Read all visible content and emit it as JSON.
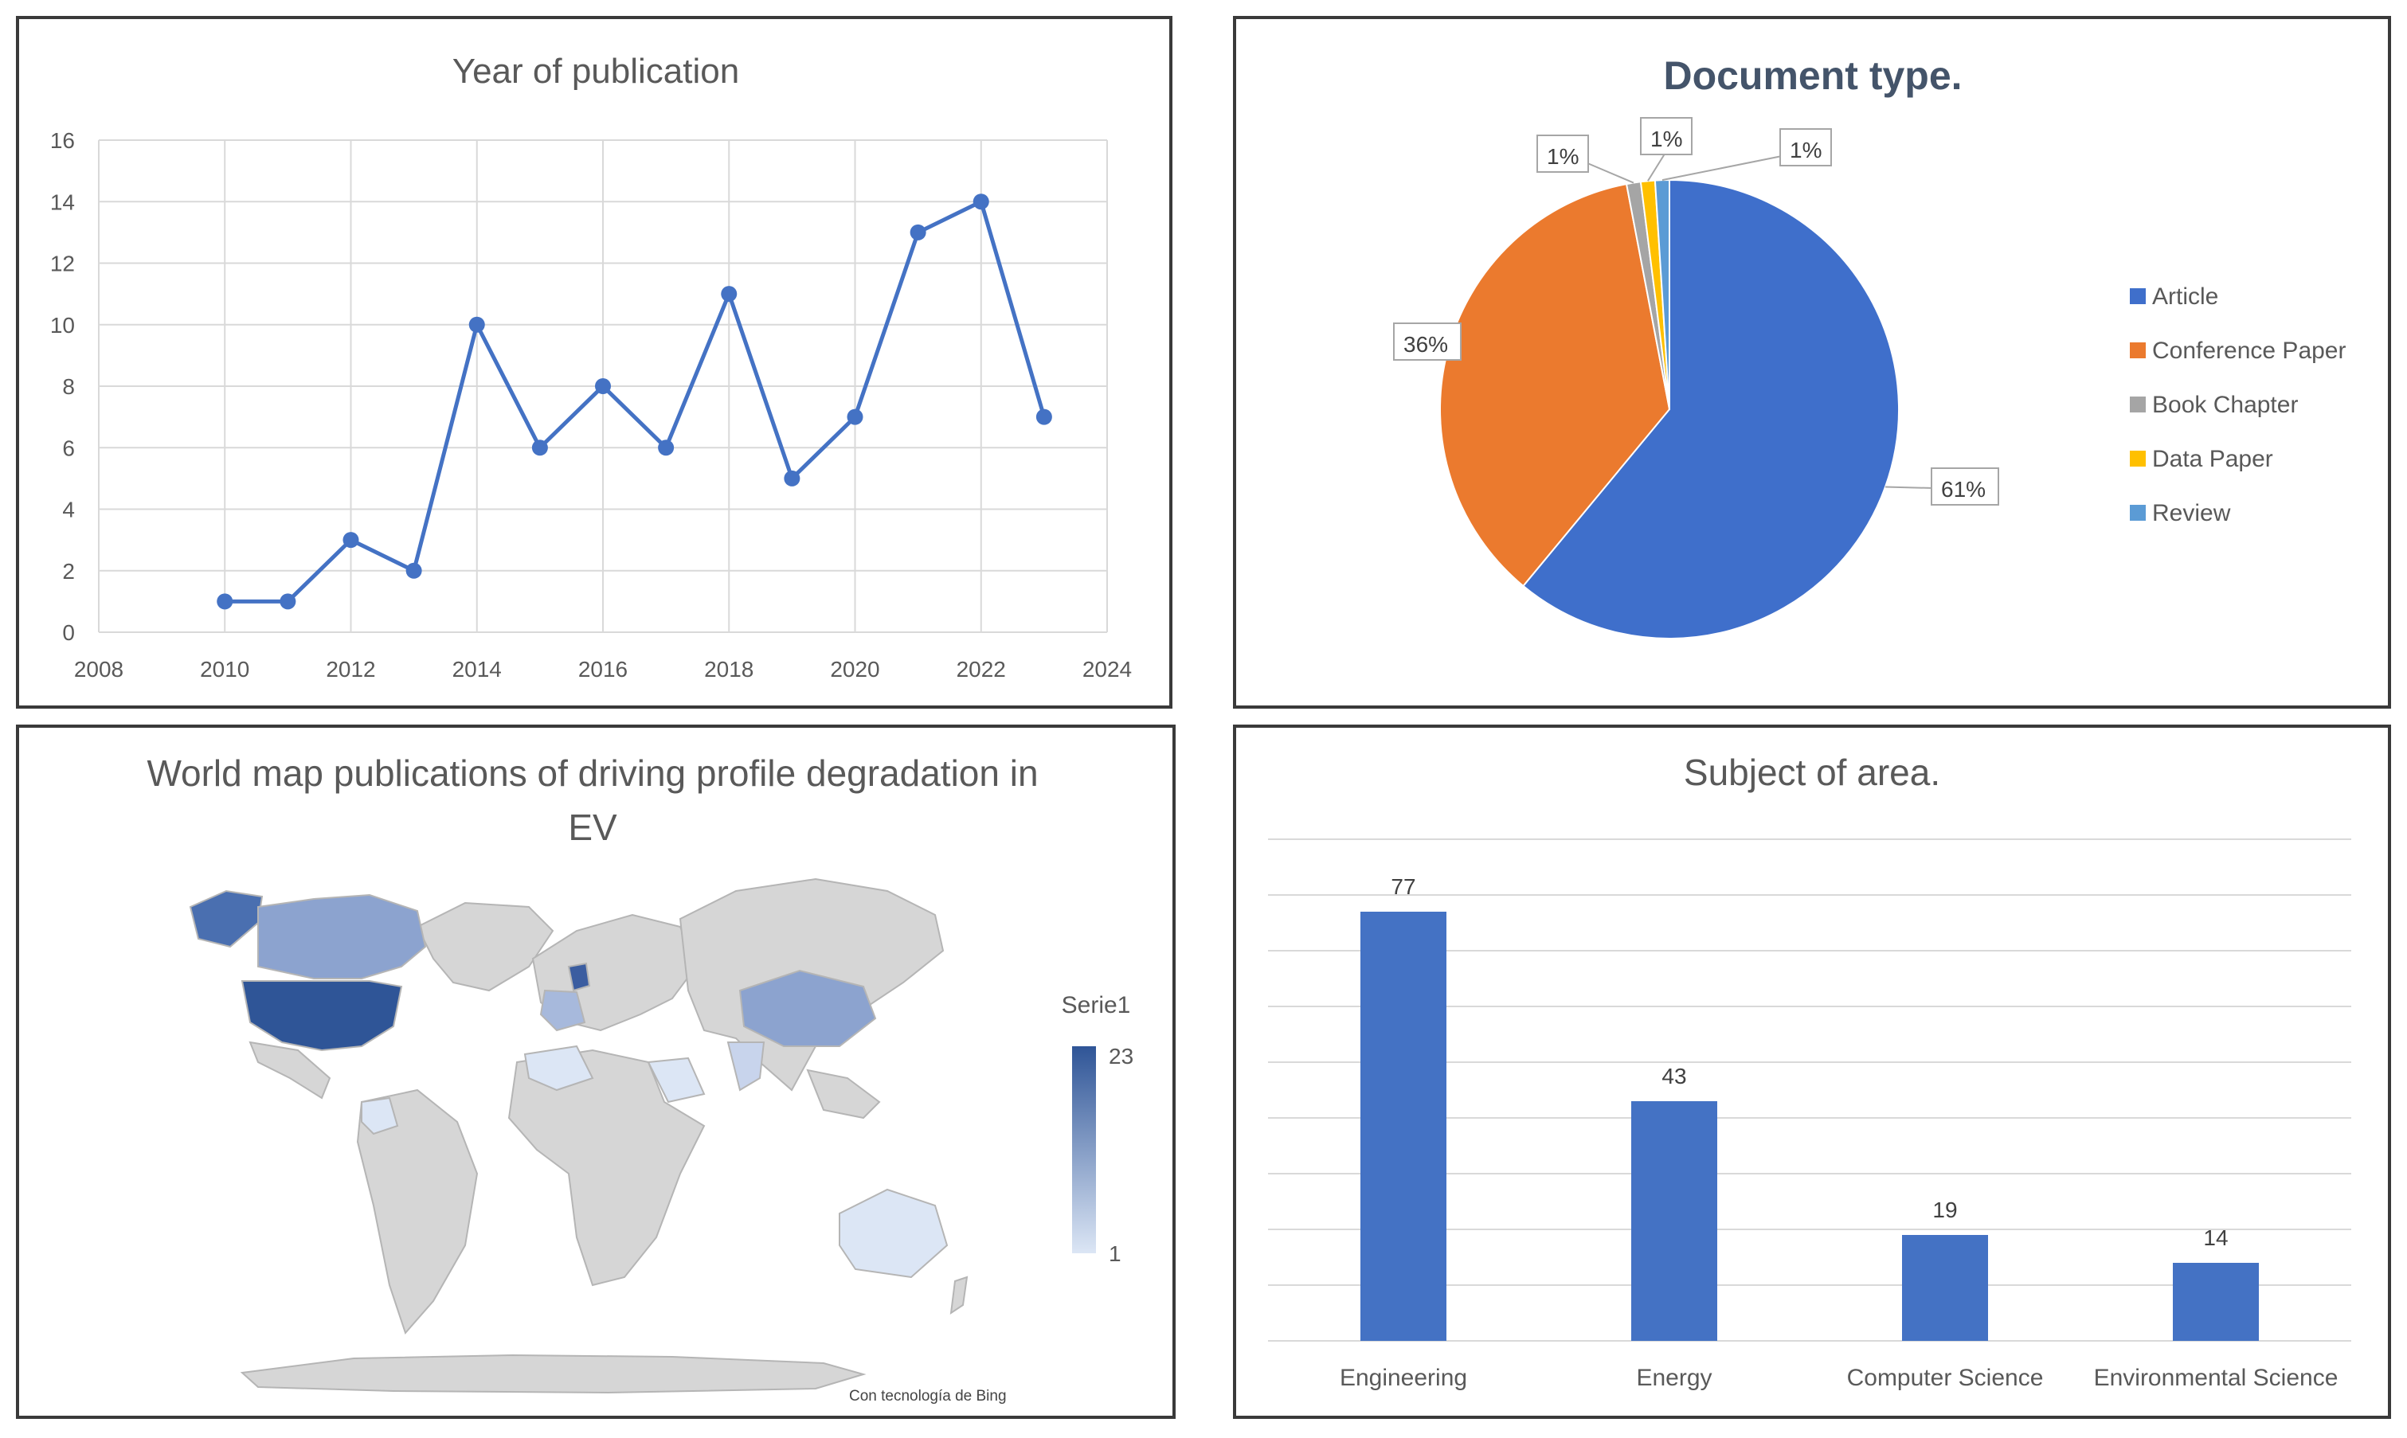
{
  "colors": {
    "line": "#4472C4",
    "article": "#3F6FCB",
    "conference": "#EB7A2E",
    "book_chapter": "#A5A5A5",
    "data_paper": "#FFC000",
    "review": "#5B9BD5",
    "bar": "#4472C4",
    "grid": "#D9D9D9",
    "map_land": "#D6D6D6",
    "map_low": "#DCE6F5",
    "map_high": "#2F5597"
  },
  "chart_data": [
    {
      "type": "line",
      "title": "Year of publication",
      "x": [
        2010,
        2011,
        2012,
        2013,
        2014,
        2015,
        2016,
        2017,
        2018,
        2019,
        2020,
        2021,
        2022,
        2023
      ],
      "y": [
        1,
        1,
        3,
        2,
        10,
        6,
        8,
        6,
        11,
        5,
        7,
        13,
        14,
        7
      ],
      "xlim": [
        2008,
        2024
      ],
      "ylim": [
        0,
        16
      ],
      "x_ticks": [
        "2008",
        "2010",
        "2012",
        "2014",
        "2016",
        "2018",
        "2020",
        "2022",
        "2024"
      ],
      "y_ticks": [
        "0",
        "2",
        "4",
        "6",
        "8",
        "10",
        "12",
        "14",
        "16"
      ],
      "grid": true
    },
    {
      "type": "pie",
      "title": "Document type.",
      "slices": [
        {
          "name": "Article",
          "value": 61,
          "label": "61%",
          "color": "#3F6FCB"
        },
        {
          "name": "Conference Paper",
          "value": 36,
          "label": "36%",
          "color": "#EB7A2E"
        },
        {
          "name": "Book Chapter",
          "value": 1,
          "label": "1%",
          "color": "#A5A5A5"
        },
        {
          "name": "Data Paper",
          "value": 1,
          "label": "1%",
          "color": "#FFC000"
        },
        {
          "name": "Review",
          "value": 1,
          "label": "1%",
          "color": "#5B9BD5"
        }
      ],
      "legend": "right"
    },
    {
      "type": "map",
      "title": "World map publications of driving profile degradation in EV",
      "legend_title": "Serie1",
      "scale_max": "23",
      "scale_min": "1",
      "attribution": "Con tecnología de Bing"
    },
    {
      "type": "bar",
      "title": "Subject of area.",
      "categories": [
        "Engineering",
        "Energy",
        "Computer Science",
        "Environmental Science"
      ],
      "values": [
        77,
        43,
        19,
        14
      ],
      "value_labels": [
        "77",
        "43",
        "19",
        "14"
      ],
      "ylim": [
        0,
        90
      ],
      "grid": true
    }
  ]
}
